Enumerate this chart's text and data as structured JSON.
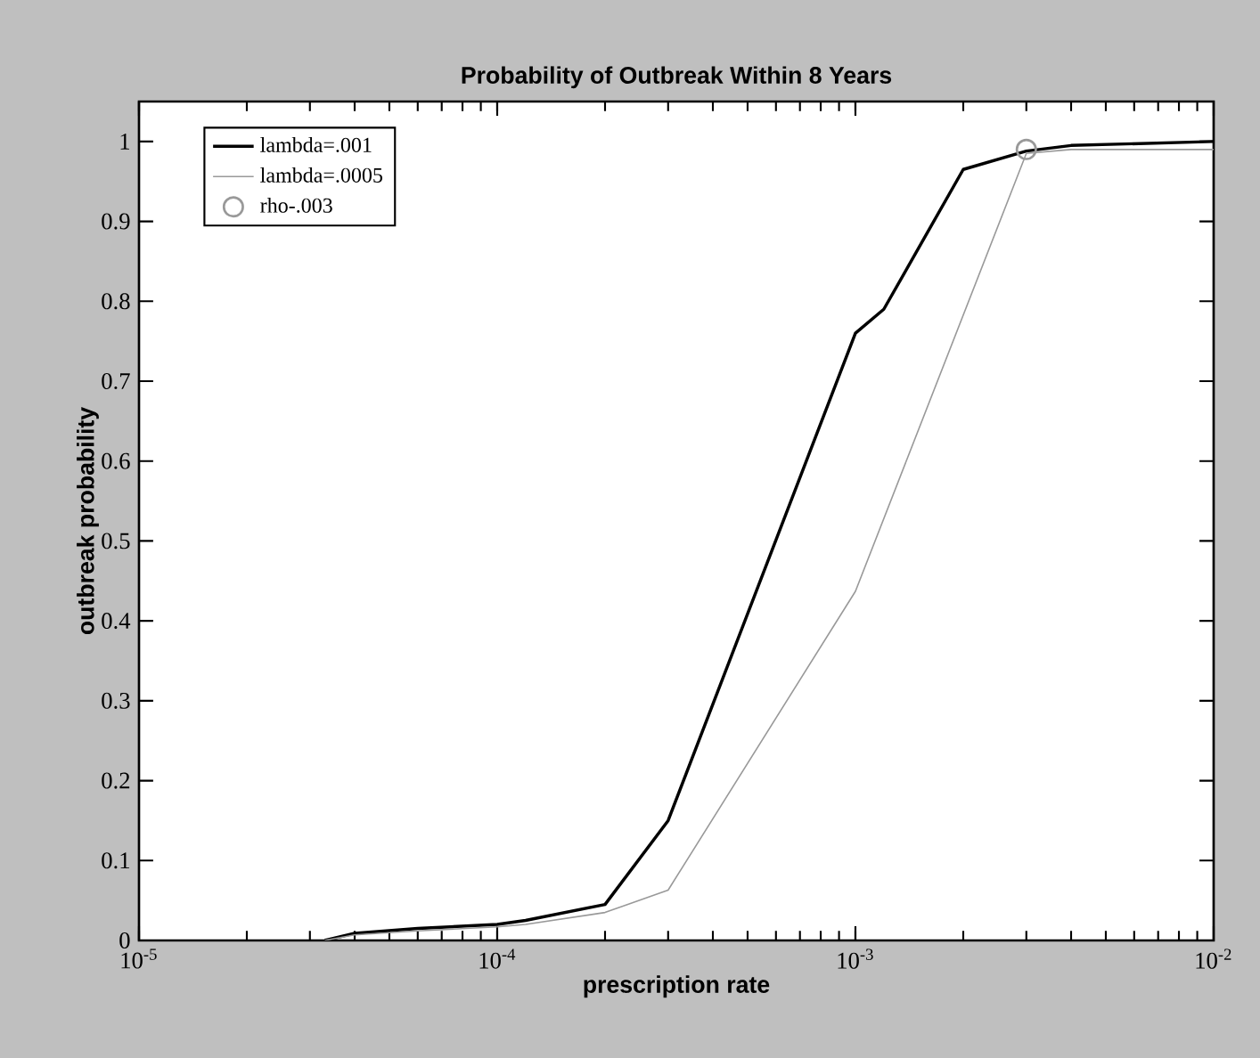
{
  "chart_data": {
    "type": "line",
    "title": "Probability of Outbreak Within 8 Years",
    "xlabel": "prescription rate",
    "ylabel": "outbreak probability",
    "log": "x",
    "xlim": [
      1e-05,
      0.01
    ],
    "ylim": [
      0,
      1.05
    ],
    "xticks": [
      {
        "value": 1e-05,
        "label": "10$^{-5}$"
      },
      {
        "value": 0.0001,
        "label": "10$^{-4}$"
      },
      {
        "value": 0.001,
        "label": "10$^{-3}$"
      },
      {
        "value": 0.01,
        "label": "10$^{-2}$"
      }
    ],
    "yticks": [
      0,
      0.1,
      0.2,
      0.3,
      0.4,
      0.5,
      0.6,
      0.7,
      0.8,
      0.9,
      1
    ],
    "grid": false,
    "legend": "top left",
    "series": [
      {
        "name": "lambda=.001",
        "color": "#000000",
        "x": [
          3.3e-05,
          4e-05,
          6e-05,
          0.0001,
          0.00012,
          0.0002,
          0.0003,
          0.001,
          0.0012,
          0.002,
          0.003,
          0.004,
          0.01
        ],
        "values": [
          0,
          0.009,
          0.015,
          0.02,
          0.025,
          0.045,
          0.15,
          0.76,
          0.79,
          0.965,
          0.988,
          0.995,
          1.0
        ]
      },
      {
        "name": "lambda=.0005",
        "color": "#999999",
        "x": [
          3.3e-05,
          4e-05,
          6e-05,
          0.0001,
          0.00012,
          0.0002,
          0.0003,
          0.001,
          0.003,
          0.004,
          0.01
        ],
        "values": [
          0,
          0.007,
          0.012,
          0.017,
          0.02,
          0.035,
          0.063,
          0.437,
          0.985,
          0.99,
          0.99
        ]
      },
      {
        "name": "rho-.003",
        "color": "#999999",
        "type": "scatter",
        "marker": "circle",
        "x": [
          0.003
        ],
        "values": [
          0.99
        ]
      }
    ]
  }
}
